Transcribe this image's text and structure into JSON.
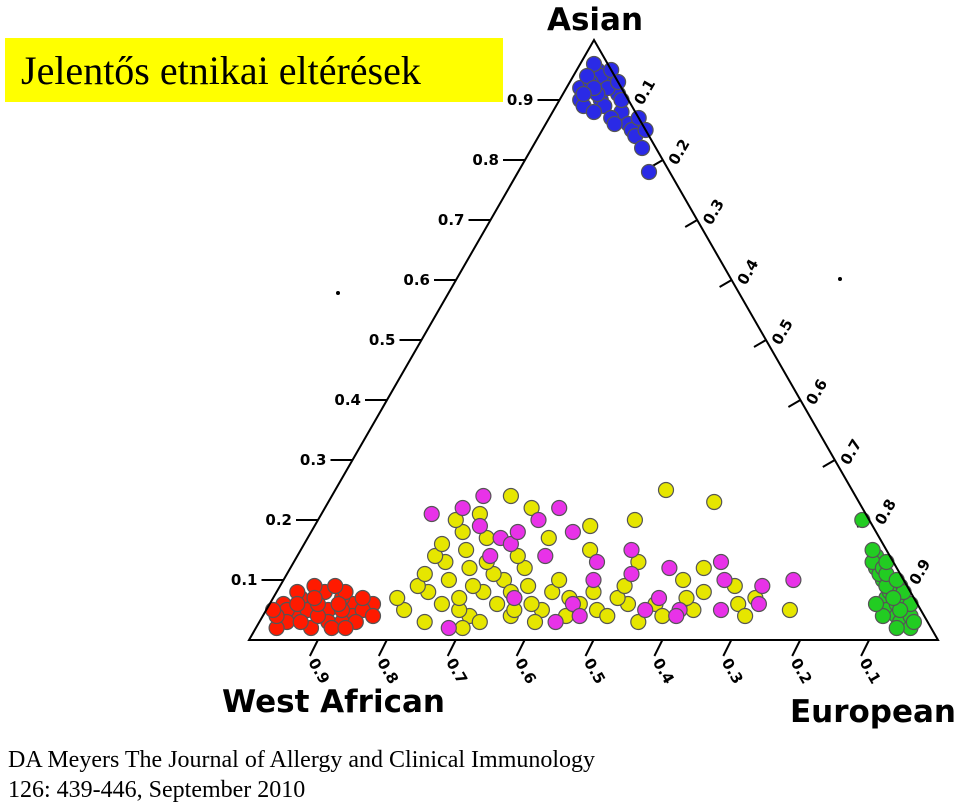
{
  "slide": {
    "title": "Jelentős etnikai eltérések",
    "citation_line1": "DA Meyers The Journal of Allergy and Clinical Immunology",
    "citation_line2": "126: 439-446, September 2010",
    "colors": {
      "title_bg": "#ffff00"
    }
  },
  "chart_data": {
    "type": "scatter",
    "subtype": "ternary",
    "vertices": {
      "top": "Asian",
      "left": "West African",
      "right": "European"
    },
    "left_axis_ticks": [
      "0.1",
      "0.2",
      "0.3",
      "0.4",
      "0.5",
      "0.6",
      "0.7",
      "0.8",
      "0.9"
    ],
    "right_axis_ticks": [
      "0.1",
      "0.2",
      "0.3",
      "0.4",
      "0.5",
      "0.6",
      "0.7",
      "0.8",
      "0.9"
    ],
    "bottom_axis_ticks": [
      "0.9",
      "0.8",
      "0.7",
      "0.6",
      "0.5",
      "0.4",
      "0.3",
      "0.2",
      "0.1"
    ],
    "series": [
      {
        "color": "#ff1a00",
        "points": [
          [
            0.06,
            0.02
          ],
          [
            0.04,
            0.05
          ],
          [
            0.05,
            0.09
          ],
          [
            0.07,
            0.04
          ],
          [
            0.03,
            0.1
          ],
          [
            0.06,
            0.12
          ],
          [
            0.08,
            0.07
          ],
          [
            0.02,
            0.08
          ],
          [
            0.05,
            0.03
          ],
          [
            0.04,
            0.13
          ],
          [
            0.07,
            0.1
          ],
          [
            0.03,
            0.04
          ],
          [
            0.06,
            0.15
          ],
          [
            0.08,
            0.03
          ],
          [
            0.05,
            0.06
          ],
          [
            0.02,
            0.03
          ],
          [
            0.04,
            0.08
          ],
          [
            0.09,
            0.05
          ],
          [
            0.03,
            0.12
          ],
          [
            0.06,
            0.07
          ],
          [
            0.05,
            0.14
          ],
          [
            0.07,
            0.13
          ],
          [
            0.02,
            0.11
          ],
          [
            0.04,
            0.02
          ],
          [
            0.08,
            0.1
          ],
          [
            0.06,
            0.04
          ],
          [
            0.03,
            0.06
          ],
          [
            0.05,
            0.11
          ],
          [
            0.07,
            0.06
          ],
          [
            0.04,
            0.16
          ],
          [
            0.09,
            0.08
          ],
          [
            0.03,
            0.14
          ],
          [
            0.06,
            0.1
          ],
          [
            0.05,
            0.01
          ],
          [
            0.02,
            0.13
          ]
        ]
      },
      {
        "color": "#e6e600",
        "points": [
          [
            0.05,
            0.2
          ],
          [
            0.06,
            0.25
          ],
          [
            0.07,
            0.18
          ],
          [
            0.04,
            0.3
          ],
          [
            0.08,
            0.22
          ],
          [
            0.05,
            0.28
          ],
          [
            0.09,
            0.2
          ],
          [
            0.03,
            0.24
          ],
          [
            0.06,
            0.33
          ],
          [
            0.07,
            0.27
          ],
          [
            0.04,
            0.36
          ],
          [
            0.08,
            0.3
          ],
          [
            0.05,
            0.4
          ],
          [
            0.1,
            0.24
          ],
          [
            0.03,
            0.32
          ],
          [
            0.06,
            0.38
          ],
          [
            0.09,
            0.28
          ],
          [
            0.04,
            0.44
          ],
          [
            0.07,
            0.35
          ],
          [
            0.05,
            0.48
          ],
          [
            0.11,
            0.2
          ],
          [
            0.08,
            0.4
          ],
          [
            0.12,
            0.26
          ],
          [
            0.06,
            0.45
          ],
          [
            0.13,
            0.22
          ],
          [
            0.1,
            0.32
          ],
          [
            0.07,
            0.43
          ],
          [
            0.14,
            0.2
          ],
          [
            0.09,
            0.36
          ],
          [
            0.15,
            0.24
          ],
          [
            0.11,
            0.3
          ],
          [
            0.16,
            0.2
          ],
          [
            0.08,
            0.34
          ],
          [
            0.12,
            0.34
          ],
          [
            0.18,
            0.22
          ],
          [
            0.13,
            0.28
          ],
          [
            0.17,
            0.26
          ],
          [
            0.1,
            0.4
          ],
          [
            0.2,
            0.2
          ],
          [
            0.14,
            0.32
          ],
          [
            0.06,
            0.52
          ],
          [
            0.03,
            0.4
          ],
          [
            0.05,
            0.36
          ],
          [
            0.07,
            0.5
          ],
          [
            0.04,
            0.5
          ],
          [
            0.02,
            0.3
          ],
          [
            0.08,
            0.46
          ],
          [
            0.06,
            0.56
          ],
          [
            0.04,
            0.58
          ],
          [
            0.05,
            0.62
          ],
          [
            0.03,
            0.55
          ],
          [
            0.09,
            0.5
          ],
          [
            0.07,
            0.6
          ],
          [
            0.06,
            0.68
          ],
          [
            0.04,
            0.7
          ],
          [
            0.1,
            0.58
          ],
          [
            0.08,
            0.62
          ],
          [
            0.07,
            0.7
          ],
          [
            0.05,
            0.76
          ],
          [
            0.17,
            0.35
          ],
          [
            0.22,
            0.3
          ],
          [
            0.19,
            0.4
          ],
          [
            0.21,
            0.23
          ],
          [
            0.24,
            0.26
          ],
          [
            0.15,
            0.42
          ],
          [
            0.13,
            0.5
          ],
          [
            0.2,
            0.46
          ],
          [
            0.25,
            0.48
          ],
          [
            0.23,
            0.56
          ],
          [
            0.09,
            0.66
          ],
          [
            0.12,
            0.6
          ]
        ]
      },
      {
        "color": "#e832e8",
        "points": [
          [
            0.22,
            0.2
          ],
          [
            0.21,
            0.16
          ],
          [
            0.19,
            0.24
          ],
          [
            0.17,
            0.28
          ],
          [
            0.2,
            0.32
          ],
          [
            0.16,
            0.3
          ],
          [
            0.14,
            0.36
          ],
          [
            0.18,
            0.3
          ],
          [
            0.1,
            0.45
          ],
          [
            0.06,
            0.44
          ],
          [
            0.05,
            0.55
          ],
          [
            0.04,
            0.46
          ],
          [
            0.07,
            0.35
          ],
          [
            0.13,
            0.44
          ],
          [
            0.12,
            0.55
          ],
          [
            0.15,
            0.48
          ],
          [
            0.11,
            0.5
          ],
          [
            0.05,
            0.6
          ],
          [
            0.07,
            0.56
          ],
          [
            0.02,
            0.28
          ],
          [
            0.1,
            0.64
          ],
          [
            0.13,
            0.62
          ],
          [
            0.09,
            0.7
          ],
          [
            0.1,
            0.74
          ],
          [
            0.05,
            0.66
          ],
          [
            0.06,
            0.71
          ],
          [
            0.04,
            0.6
          ],
          [
            0.03,
            0.43
          ],
          [
            0.14,
            0.28
          ],
          [
            0.24,
            0.22
          ],
          [
            0.18,
            0.38
          ],
          [
            0.22,
            0.34
          ]
        ]
      },
      {
        "color": "#2a2ae6",
        "points": [
          [
            0.95,
            0.03
          ],
          [
            0.93,
            0.05
          ],
          [
            0.92,
            0.02
          ],
          [
            0.9,
            0.06
          ],
          [
            0.94,
            0.04
          ],
          [
            0.91,
            0.08
          ],
          [
            0.89,
            0.07
          ],
          [
            0.96,
            0.02
          ],
          [
            0.93,
            0.03
          ],
          [
            0.88,
            0.1
          ],
          [
            0.92,
            0.06
          ],
          [
            0.87,
            0.09
          ],
          [
            0.95,
            0.05
          ],
          [
            0.9,
            0.03
          ],
          [
            0.86,
            0.12
          ],
          [
            0.91,
            0.05
          ],
          [
            0.94,
            0.02
          ],
          [
            0.89,
            0.04
          ],
          [
            0.85,
            0.13
          ],
          [
            0.93,
            0.07
          ],
          [
            0.88,
            0.06
          ],
          [
            0.87,
            0.13
          ],
          [
            0.84,
            0.14
          ],
          [
            0.82,
            0.16
          ],
          [
            0.92,
            0.04
          ],
          [
            0.9,
            0.09
          ],
          [
            0.86,
            0.1
          ],
          [
            0.78,
            0.19
          ],
          [
            0.91,
            0.03
          ],
          [
            0.85,
            0.15
          ]
        ]
      },
      {
        "color": "#22cc22",
        "points": [
          [
            0.2,
            0.79
          ],
          [
            0.14,
            0.84
          ],
          [
            0.1,
            0.87
          ],
          [
            0.07,
            0.89
          ],
          [
            0.12,
            0.85
          ],
          [
            0.09,
            0.9
          ],
          [
            0.05,
            0.9
          ],
          [
            0.11,
            0.86
          ],
          [
            0.04,
            0.92
          ],
          [
            0.08,
            0.89
          ],
          [
            0.13,
            0.84
          ],
          [
            0.06,
            0.91
          ],
          [
            0.03,
            0.93
          ],
          [
            0.1,
            0.88
          ],
          [
            0.07,
            0.91
          ],
          [
            0.05,
            0.93
          ],
          [
            0.12,
            0.86
          ],
          [
            0.02,
            0.95
          ],
          [
            0.09,
            0.88
          ],
          [
            0.04,
            0.94
          ],
          [
            0.11,
            0.87
          ],
          [
            0.06,
            0.93
          ],
          [
            0.03,
            0.95
          ],
          [
            0.08,
            0.91
          ],
          [
            0.15,
            0.83
          ],
          [
            0.13,
            0.86
          ],
          [
            0.05,
            0.92
          ],
          [
            0.07,
            0.9
          ],
          [
            0.02,
            0.93
          ],
          [
            0.1,
            0.89
          ],
          [
            0.04,
            0.9
          ],
          [
            0.06,
            0.88
          ]
        ]
      }
    ]
  }
}
